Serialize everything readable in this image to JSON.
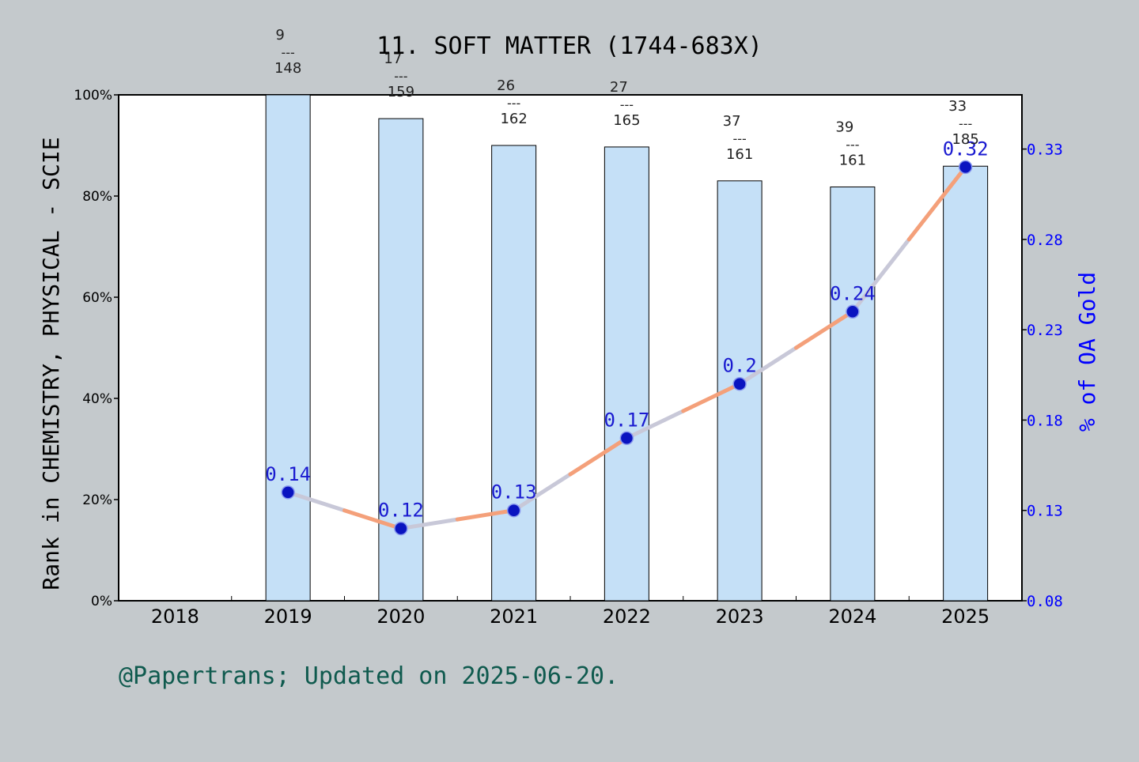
{
  "chart_data": {
    "type": "bar",
    "title": "11. SOFT MATTER (1744-683X)",
    "footer": "@Papertrans; Updated on 2025-06-20.",
    "categories": [
      "2018",
      "2019",
      "2020",
      "2021",
      "2022",
      "2023",
      "2024",
      "2025"
    ],
    "left_axis": {
      "label": "Rank in CHEMISTRY, PHYSICAL - SCIE",
      "ylim": [
        0,
        100
      ],
      "ticks": [
        "0%",
        "20%",
        "40%",
        "60%",
        "80%",
        "100%"
      ]
    },
    "right_axis": {
      "label": "% of OA Gold",
      "ylim": [
        0.08,
        0.36
      ],
      "ticks": [
        "0.08",
        "0.13",
        "0.18",
        "0.23",
        "0.28",
        "0.33"
      ],
      "color": "#0000ff"
    },
    "series": [
      {
        "kind": "bar",
        "values": [
          null,
          100,
          95.3,
          90.0,
          89.7,
          83.0,
          81.8,
          85.9
        ],
        "ranks": [
          null,
          "9",
          "17",
          "26",
          "27",
          "37",
          "39",
          "33"
        ],
        "totals": [
          null,
          "148",
          "159",
          "162",
          "165",
          "161",
          "161",
          "185"
        ],
        "separator": "---",
        "color": "#c5e0f7"
      },
      {
        "kind": "line",
        "axis": "right",
        "values": [
          null,
          0.14,
          0.12,
          0.13,
          0.17,
          0.2,
          0.24,
          0.32
        ],
        "labels": [
          null,
          "0.14",
          "0.12",
          "0.13",
          "0.17",
          "0.2",
          "0.24",
          "0.32"
        ],
        "line_color": "#f4a07a",
        "marker_color": "#0a14c0"
      }
    ],
    "grid": false
  }
}
